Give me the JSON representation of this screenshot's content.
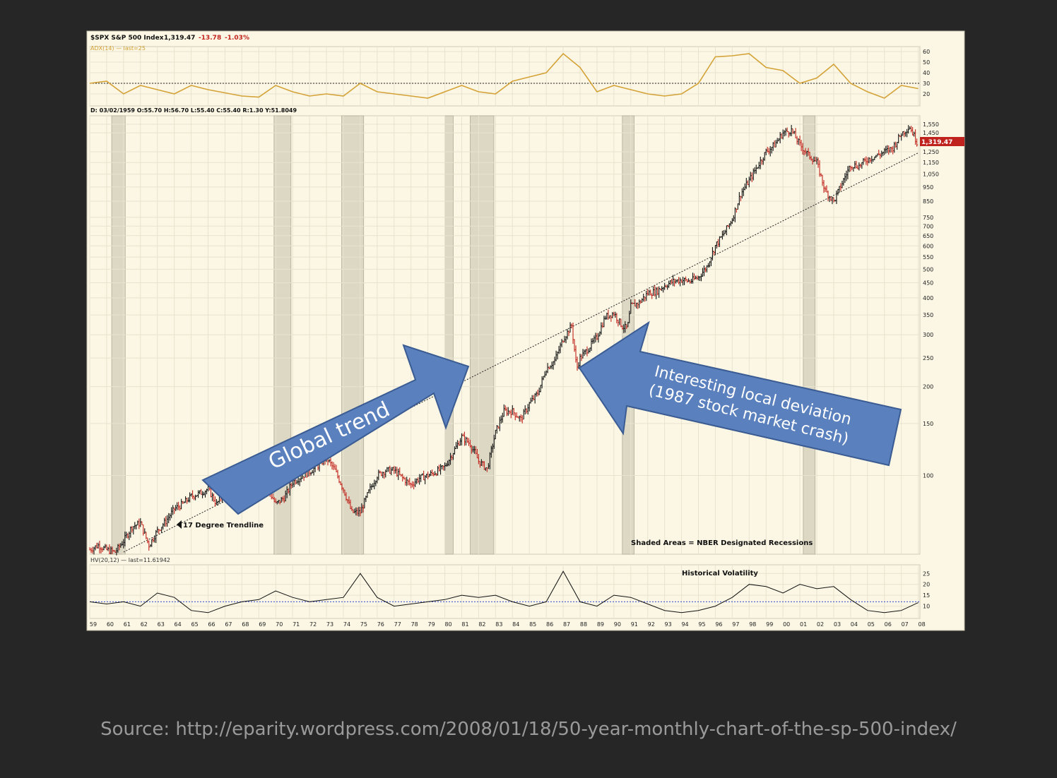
{
  "header": {
    "symbol": "$SPX S&P 500 Index",
    "last": "1,319.47",
    "change": "-13.78",
    "change_pct": "-1.03%",
    "adx_label": "ADX(14) — last=25",
    "ohlc_line": "D: 03/02/1959 O:55.70 H:56.70 L:55.40 C:55.40 R:1.30 Y:51.8049",
    "price_badge": "1,319.47"
  },
  "annotations": {
    "trendline_label": "17 Degree Trendline",
    "recession_note": "Shaded Areas = NBER Designated Recessions",
    "hv_title": "Historical Volatility",
    "hv_label": "HV(20,12) — last=11.61942",
    "arrow_global": "Global trend",
    "arrow_local_line1": "Interesting local deviation",
    "arrow_local_line2": "(1987 stock market crash)"
  },
  "source_text": "Source: http://eparity.wordpress.com/2008/01/18/50-year-monthly-chart-of-the-sp-500-index/",
  "colors": {
    "background": "#262626",
    "chart_bg": "#fbf7e4",
    "adx_line": "#d4a237",
    "up_bar": "#111111",
    "down_bar": "#c2241d",
    "recession": "#dcd8c4",
    "hv_line": "#111111",
    "hv_ref": "#3048d8",
    "arrow_fill": "#5a80bd",
    "arrow_stroke": "#3b5c93",
    "price_badge": "#c0231e"
  },
  "chart_data": [
    {
      "type": "line",
      "name": "ADX(14)",
      "x": [
        1959,
        1960,
        1961,
        1962,
        1963,
        1964,
        1965,
        1966,
        1967,
        1968,
        1969,
        1970,
        1971,
        1972,
        1973,
        1974,
        1975,
        1976,
        1977,
        1978,
        1979,
        1980,
        1981,
        1982,
        1983,
        1984,
        1985,
        1986,
        1987,
        1988,
        1989,
        1990,
        1991,
        1992,
        1993,
        1994,
        1995,
        1996,
        1997,
        1998,
        1999,
        2000,
        2001,
        2002,
        2003,
        2004,
        2005,
        2006,
        2007,
        2008
      ],
      "values": [
        30,
        32,
        20,
        28,
        24,
        20,
        28,
        24,
        21,
        18,
        17,
        28,
        22,
        18,
        20,
        18,
        30,
        22,
        20,
        18,
        16,
        22,
        28,
        22,
        20,
        32,
        36,
        40,
        58,
        45,
        22,
        28,
        24,
        20,
        18,
        20,
        30,
        55,
        56,
        58,
        45,
        42,
        30,
        35,
        48,
        30,
        22,
        16,
        28,
        25
      ],
      "ylim": [
        10,
        62
      ],
      "ticks": [
        20,
        30,
        40,
        50,
        60
      ],
      "reference_line": 30
    },
    {
      "type": "line",
      "name": "$SPX S&P 500 Index",
      "log_scale": true,
      "x": [
        1959,
        1959.5,
        1960,
        1960.5,
        1961,
        1961.5,
        1962,
        1962.5,
        1963,
        1963.5,
        1964,
        1964.5,
        1965,
        1965.5,
        1966,
        1966.5,
        1967,
        1967.5,
        1968,
        1968.5,
        1969,
        1969.5,
        1970,
        1970.5,
        1971,
        1971.5,
        1972,
        1972.5,
        1973,
        1973.5,
        1974,
        1974.5,
        1975,
        1975.5,
        1976,
        1976.5,
        1977,
        1977.5,
        1978,
        1978.5,
        1979,
        1979.5,
        1980,
        1980.5,
        1981,
        1981.5,
        1982,
        1982.5,
        1983,
        1983.5,
        1984,
        1984.5,
        1985,
        1985.5,
        1986,
        1986.5,
        1987,
        1987.5,
        1987.8,
        1988,
        1988.5,
        1989,
        1989.5,
        1990,
        1990.5,
        1990.8,
        1991,
        1991.5,
        1992,
        1992.5,
        1993,
        1993.5,
        1994,
        1994.5,
        1995,
        1995.5,
        1996,
        1996.5,
        1997,
        1997.5,
        1998,
        1998.5,
        1999,
        1999.5,
        2000,
        2000.5,
        2001,
        2001.5,
        2002,
        2002.5,
        2003,
        2003.5,
        2004,
        2004.5,
        2005,
        2005.5,
        2006,
        2006.5,
        2007,
        2007.5,
        2008
      ],
      "values": [
        56,
        58,
        56,
        55,
        60,
        67,
        69,
        58,
        65,
        70,
        77,
        80,
        85,
        87,
        90,
        80,
        88,
        94,
        93,
        102,
        101,
        91,
        80,
        84,
        95,
        99,
        103,
        108,
        115,
        104,
        90,
        75,
        75,
        88,
        100,
        104,
        104,
        98,
        93,
        98,
        100,
        103,
        107,
        120,
        135,
        128,
        112,
        105,
        140,
        165,
        165,
        155,
        175,
        190,
        230,
        245,
        290,
        322,
        230,
        250,
        270,
        295,
        345,
        355,
        320,
        315,
        375,
        385,
        415,
        420,
        440,
        455,
        460,
        455,
        470,
        510,
        600,
        660,
        740,
        900,
        1000,
        1120,
        1250,
        1320,
        1450,
        1480,
        1320,
        1220,
        1150,
        920,
        850,
        980,
        1130,
        1120,
        1180,
        1210,
        1250,
        1290,
        1440,
        1520,
        1319.47
      ],
      "ylim": [
        55,
        1620
      ],
      "ticks": [
        100,
        150,
        200,
        250,
        300,
        350,
        400,
        450,
        500,
        550,
        600,
        650,
        700,
        750,
        850,
        950,
        1050,
        1150,
        1250,
        1450,
        1550
      ],
      "last": 1319.47,
      "recessions": [
        [
          1960.3,
          1961.1
        ],
        [
          1969.9,
          1970.9
        ],
        [
          1973.9,
          1975.2
        ],
        [
          1980.0,
          1980.5
        ],
        [
          1981.5,
          1982.9
        ],
        [
          1990.5,
          1991.2
        ],
        [
          2001.2,
          2001.9
        ]
      ],
      "trendline": {
        "x": [
          1961,
          2008
        ],
        "values": [
          55,
          1240
        ]
      },
      "annotations": [
        "17 Degree Trendline",
        "Shaded Areas = NBER Designated Recessions",
        "Global trend",
        "Interesting local deviation",
        "(1987 stock market crash)"
      ]
    },
    {
      "type": "line",
      "name": "HV(20,12)",
      "x": [
        1959,
        1960,
        1961,
        1962,
        1963,
        1964,
        1965,
        1966,
        1967,
        1968,
        1969,
        1970,
        1971,
        1972,
        1973,
        1974,
        1975,
        1976,
        1977,
        1978,
        1979,
        1980,
        1981,
        1982,
        1983,
        1984,
        1985,
        1986,
        1987,
        1988,
        1989,
        1990,
        1991,
        1992,
        1993,
        1994,
        1995,
        1996,
        1997,
        1998,
        1999,
        2000,
        2001,
        2002,
        2003,
        2004,
        2005,
        2006,
        2007,
        2008
      ],
      "values": [
        12,
        11,
        12,
        10,
        16,
        14,
        8,
        7,
        10,
        12,
        13,
        17,
        14,
        12,
        13,
        14,
        25,
        14,
        10,
        11,
        12,
        13,
        15,
        14,
        15,
        12,
        10,
        12,
        26,
        12,
        10,
        15,
        14,
        11,
        8,
        7,
        8,
        10,
        14,
        20,
        19,
        16,
        20,
        18,
        19,
        13,
        8,
        7,
        8,
        11.61942
      ],
      "ylim": [
        5,
        28
      ],
      "ticks": [
        10,
        15,
        20,
        25
      ],
      "reference_line": 12
    }
  ],
  "x_tick_labels": [
    "59",
    "60",
    "61",
    "62",
    "63",
    "64",
    "65",
    "66",
    "67",
    "68",
    "69",
    "70",
    "71",
    "72",
    "73",
    "74",
    "75",
    "76",
    "77",
    "78",
    "79",
    "80",
    "81",
    "82",
    "83",
    "84",
    "85",
    "86",
    "87",
    "88",
    "89",
    "90",
    "91",
    "92",
    "93",
    "94",
    "95",
    "96",
    "97",
    "98",
    "99",
    "00",
    "01",
    "02",
    "03",
    "04",
    "05",
    "06",
    "07",
    "08"
  ]
}
